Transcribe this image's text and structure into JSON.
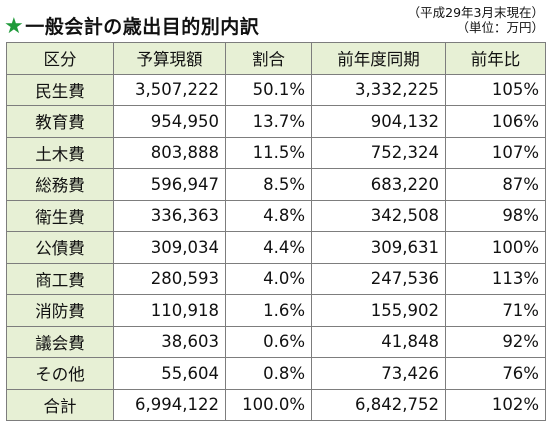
{
  "header": {
    "star_icon": "green-star",
    "title": "一般会計の歳出目的別内訳",
    "note_date": "（平成29年3月末現在）",
    "note_unit": "（単位：万円）"
  },
  "table": {
    "columns": [
      "区分",
      "予算現額",
      "割合",
      "前年度同期",
      "前年比"
    ],
    "rows": [
      {
        "category": "民生費",
        "budget": "3,507,222",
        "ratio": "50.1%",
        "prev": "3,332,225",
        "yoy": "105%"
      },
      {
        "category": "教育費",
        "budget": "954,950",
        "ratio": "13.7%",
        "prev": "904,132",
        "yoy": "106%"
      },
      {
        "category": "土木費",
        "budget": "803,888",
        "ratio": "11.5%",
        "prev": "752,324",
        "yoy": "107%"
      },
      {
        "category": "総務費",
        "budget": "596,947",
        "ratio": "8.5%",
        "prev": "683,220",
        "yoy": "87%"
      },
      {
        "category": "衛生費",
        "budget": "336,363",
        "ratio": "4.8%",
        "prev": "342,508",
        "yoy": "98%"
      },
      {
        "category": "公債費",
        "budget": "309,034",
        "ratio": "4.4%",
        "prev": "309,631",
        "yoy": "100%"
      },
      {
        "category": "商工費",
        "budget": "280,593",
        "ratio": "4.0%",
        "prev": "247,536",
        "yoy": "113%"
      },
      {
        "category": "消防費",
        "budget": "110,918",
        "ratio": "1.6%",
        "prev": "155,902",
        "yoy": "71%"
      },
      {
        "category": "議会費",
        "budget": "38,603",
        "ratio": "0.6%",
        "prev": "41,848",
        "yoy": "92%"
      },
      {
        "category": "その他",
        "budget": "55,604",
        "ratio": "0.8%",
        "prev": "73,426",
        "yoy": "76%"
      }
    ],
    "total": {
      "category": "合計",
      "budget": "6,994,122",
      "ratio": "100.0%",
      "prev": "6,842,752",
      "yoy": "102%"
    }
  },
  "colors": {
    "accent": "#1f9a3a",
    "header_bg": "#e7f0d5",
    "border": "#7d7d7d"
  }
}
